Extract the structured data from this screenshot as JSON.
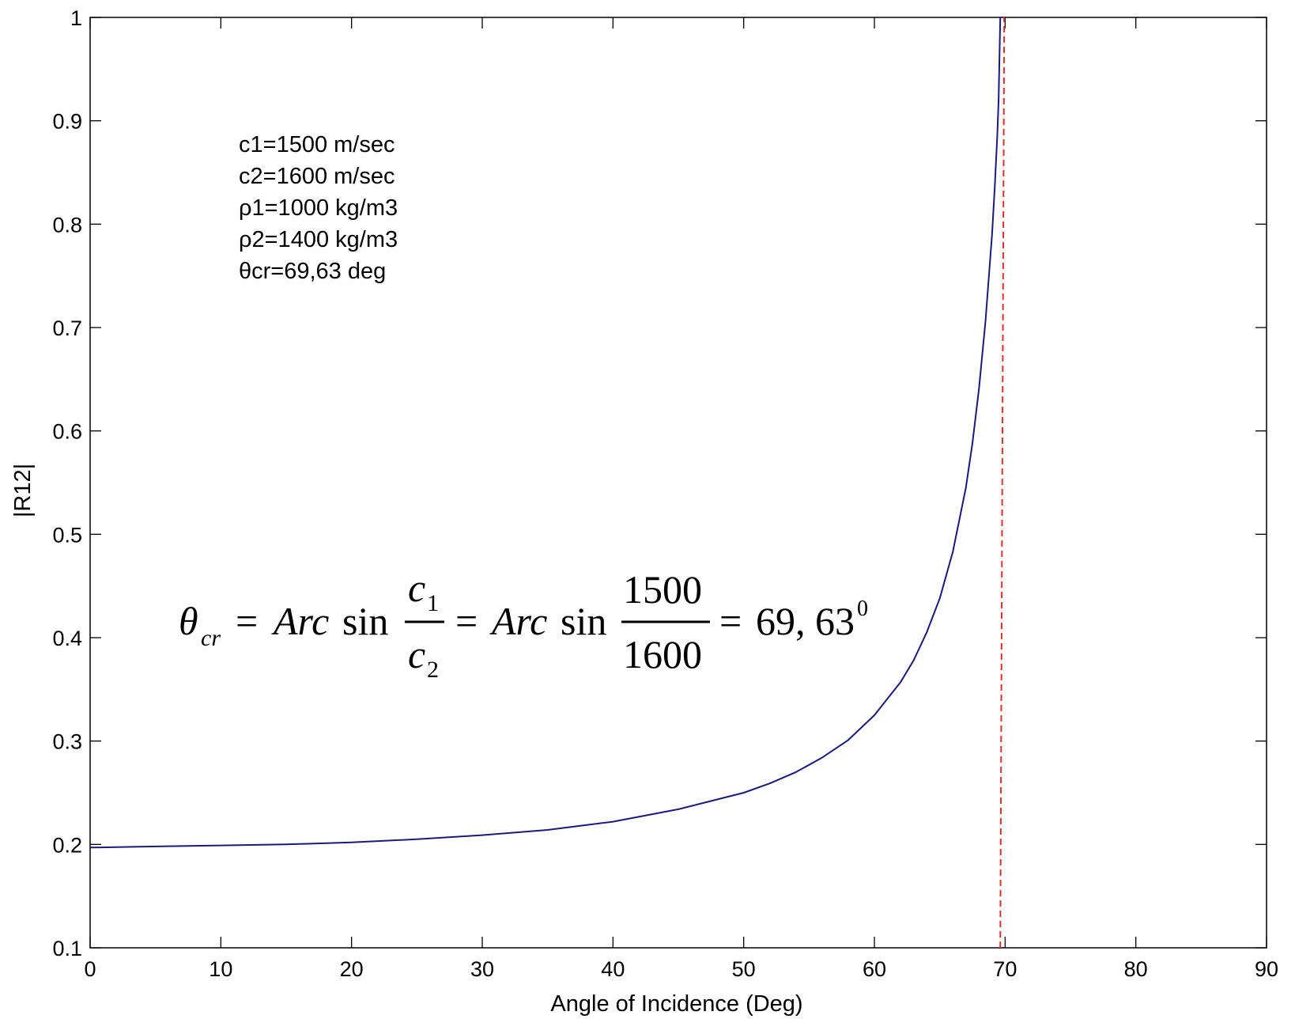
{
  "chart_data": {
    "type": "line",
    "xlabel": "Angle of Incidence (Deg)",
    "ylabel": "|R12|",
    "xlim": [
      0,
      90
    ],
    "ylim": [
      0.1,
      1
    ],
    "x_ticks": [
      "0",
      "10",
      "20",
      "30",
      "40",
      "50",
      "60",
      "70",
      "80",
      "90"
    ],
    "y_ticks": [
      "0.1",
      "0.2",
      "0.3",
      "0.4",
      "0.5",
      "0.6",
      "0.7",
      "0.8",
      "0.9",
      "1"
    ],
    "grid": false,
    "series": [
      {
        "color": "#1a1a7a",
        "x": [
          0,
          5,
          10,
          15,
          20,
          25,
          30,
          35,
          40,
          45,
          50,
          52,
          54,
          56,
          58,
          60,
          62,
          63,
          64,
          65,
          66,
          67,
          67.5,
          68,
          68.5,
          69,
          69.2,
          69.4,
          69.5,
          69.63
        ],
        "y": [
          0.197,
          0.198,
          0.199,
          0.2,
          0.202,
          0.205,
          0.209,
          0.214,
          0.222,
          0.234,
          0.25,
          0.259,
          0.27,
          0.284,
          0.301,
          0.325,
          0.357,
          0.378,
          0.405,
          0.438,
          0.483,
          0.545,
          0.588,
          0.641,
          0.706,
          0.79,
          0.834,
          0.885,
          0.92,
          1.0
        ]
      }
    ],
    "reference_line": {
      "x": 69.63,
      "color": "#e0302a",
      "style": "dashed"
    },
    "annotations": {
      "parameters": [
        "c1=1500 m/sec",
        "c2=1600 m/sec",
        "ρ1=1000 kg/m3",
        "ρ2=1400 kg/m3",
        "θcr=69,63 deg"
      ],
      "formula": {
        "lhs": "θ",
        "lhs_sub": "cr",
        "eq1": "=",
        "arc1": "Arc",
        "sin1": "sin",
        "frac1_num": "c",
        "frac1_num_sub": "1",
        "frac1_den": "c",
        "frac1_den_sub": "2",
        "eq2": "=",
        "arc2": "Arc",
        "sin2": "sin",
        "frac2_num": "1500",
        "frac2_den": "1600",
        "eq3": "=",
        "result": "69, 63",
        "result_sup": "0"
      }
    }
  }
}
